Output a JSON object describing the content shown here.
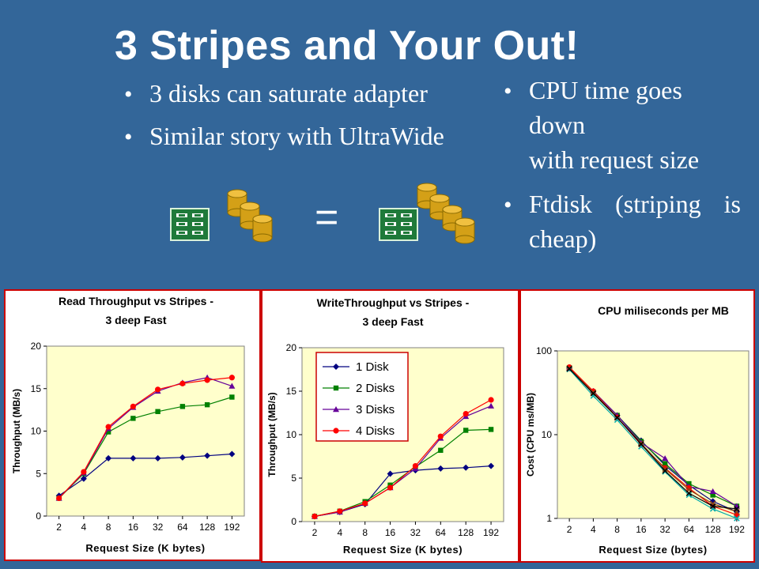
{
  "slide": {
    "title": "3 Stripes and Your Out!",
    "left_bullets": [
      "3 disks can saturate adapter",
      "Similar story with UltraWide"
    ],
    "right_bullets": [
      {
        "lines": [
          "CPU time goes",
          "down",
          "with request size"
        ]
      },
      {
        "lines": [
          "Ftdisk (striping is",
          "cheap)"
        ]
      }
    ],
    "equals": "=",
    "bullet_glyph": "•"
  },
  "colors": {
    "background": "#336699",
    "plot_bg": "#ffffcc",
    "series": [
      "#000080",
      "#008000",
      "#660099",
      "#ff0000"
    ],
    "extra_series": [
      "#00aaaa",
      "#8b4513",
      "#000000"
    ],
    "border_red": "#cc0000"
  },
  "icons": [
    "adapter-card-icon",
    "disk-stack-icon"
  ],
  "chart_data": [
    {
      "type": "line",
      "title": [
        "Read Throughput vs Stripes -",
        "3 deep Fast"
      ],
      "xlabel": "Request Size (K bytes)",
      "ylabel": "Throughput (MB/s)",
      "categories": [
        "2",
        "4",
        "8",
        "16",
        "32",
        "64",
        "128",
        "192"
      ],
      "yticks": [
        "0",
        "5",
        "10",
        "15",
        "20"
      ],
      "ylim": [
        0,
        20
      ],
      "grid": false,
      "legend": false,
      "series": [
        {
          "values": [
            2.4,
            4.4,
            6.8,
            6.8,
            6.8,
            6.9,
            7.1,
            7.3
          ]
        },
        {
          "values": [
            2.1,
            5.0,
            9.9,
            11.5,
            12.3,
            12.9,
            13.1,
            14.0
          ]
        },
        {
          "values": [
            2.1,
            5.1,
            10.3,
            12.8,
            14.7,
            15.7,
            16.3,
            15.3
          ]
        },
        {
          "values": [
            2.1,
            5.2,
            10.5,
            12.9,
            14.9,
            15.6,
            16.0,
            16.3
          ]
        }
      ]
    },
    {
      "type": "line",
      "title": [
        "WriteThroughput vs Stripes -",
        "3 deep Fast"
      ],
      "xlabel": "Request Size (K bytes)",
      "ylabel": "Throughput (MB/s)",
      "categories": [
        "2",
        "4",
        "8",
        "16",
        "32",
        "64",
        "128",
        "192"
      ],
      "yticks": [
        "0",
        "5",
        "10",
        "15",
        "20"
      ],
      "ylim": [
        0,
        20
      ],
      "grid": false,
      "legend": "top-left",
      "series": [
        {
          "name": "1 Disk",
          "values": [
            0.6,
            1.1,
            2.0,
            5.5,
            5.9,
            6.1,
            6.2,
            6.4
          ]
        },
        {
          "name": "2 Disks",
          "values": [
            0.6,
            1.2,
            2.3,
            4.2,
            6.3,
            8.2,
            10.5,
            10.6
          ]
        },
        {
          "name": "3 Disks",
          "values": [
            0.6,
            1.1,
            2.1,
            3.9,
            6.1,
            9.6,
            12.1,
            13.3
          ]
        },
        {
          "name": "4 Disks",
          "values": [
            0.6,
            1.2,
            2.1,
            3.9,
            6.4,
            9.8,
            12.4,
            14.0
          ]
        }
      ]
    },
    {
      "type": "line",
      "title": [
        "CPU miliseconds per MB"
      ],
      "xlabel": "Request Size (bytes)",
      "ylabel": "Cost (CPU ms/MB)",
      "yscale": "log",
      "categories": [
        "2",
        "4",
        "8",
        "16",
        "32",
        "64",
        "128",
        "192"
      ],
      "yticks": [
        "1",
        "10",
        "100"
      ],
      "ylim": [
        1,
        100
      ],
      "grid": false,
      "legend": false,
      "series": [
        {
          "values": [
            62,
            33,
            17,
            8.5,
            4.3,
            2.5,
            1.6,
            1.2
          ]
        },
        {
          "values": [
            63,
            32,
            17,
            8.3,
            4.5,
            2.6,
            1.9,
            1.4
          ]
        },
        {
          "values": [
            63,
            33,
            17,
            8.0,
            5.2,
            2.4,
            2.1,
            1.4
          ]
        },
        {
          "values": [
            64,
            33,
            16,
            7.6,
            4.0,
            2.3,
            1.4,
            1.1
          ]
        },
        {
          "values": [
            60,
            29,
            15,
            7.2,
            3.6,
            1.9,
            1.3,
            1.0
          ]
        },
        {
          "values": [
            62,
            32,
            16,
            7.9,
            3.9,
            2.2,
            1.5,
            1.2
          ]
        },
        {
          "values": [
            61,
            31,
            16,
            7.7,
            3.7,
            2.0,
            1.4,
            1.3
          ]
        }
      ]
    }
  ]
}
